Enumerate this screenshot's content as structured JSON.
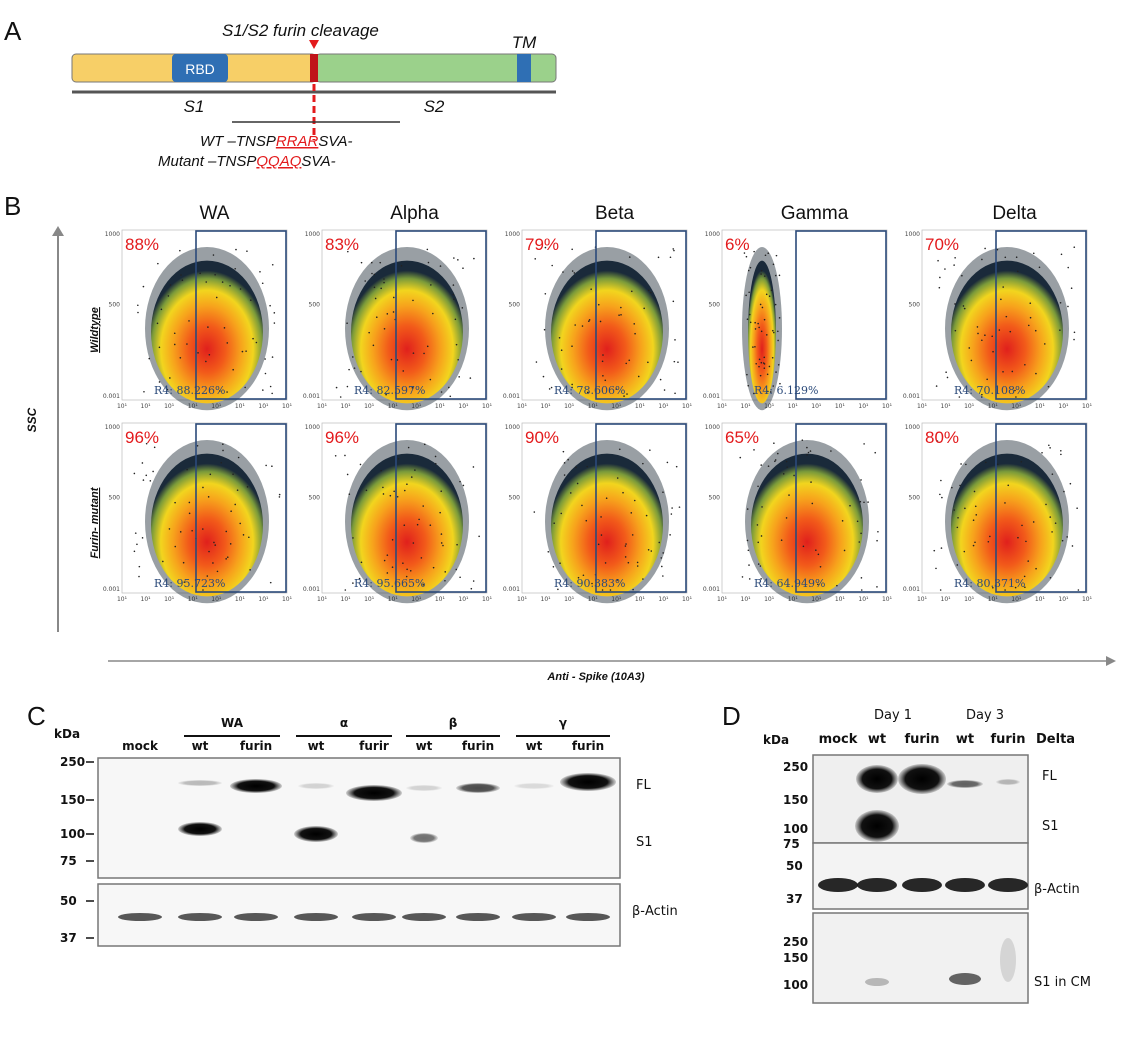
{
  "panel_a": {
    "letter": "A",
    "cleavage_label": "S1/S2 furin cleavage",
    "rbd_label": "RBD",
    "tm_label": "TM",
    "s1_label": "S1",
    "s2_label": "S2",
    "wt_prefix": "WT –TNSP",
    "wt_site": "RRAR",
    "wt_suffix": "SVA-",
    "mut_prefix": "Mutant –TNSP",
    "mut_site": "QQAQ",
    "mut_suffix": "SVA-",
    "colors": {
      "s1": "#f7cf67",
      "s2": "#9bd18b",
      "domain": "#2f6fb4",
      "site": "#e31a1c"
    }
  },
  "panel_b": {
    "letter": "B",
    "y_axis_label": "SSC",
    "x_axis_label": "Anti - Spike (10A3)",
    "row_labels": [
      "Wildtype",
      "Furin- mutant"
    ],
    "variants": [
      "WA",
      "Alpha",
      "Beta",
      "Gamma",
      "Delta"
    ],
    "x_ticks": [
      "10¹",
      "10¹",
      "10¹",
      "10¹",
      "10¹",
      "10¹",
      "10¹",
      "10¹"
    ],
    "y_ticks": [
      "1000",
      "500",
      "0.001"
    ],
    "plots": [
      [
        {
          "pct": "88%",
          "gate": "R4: 88.226%",
          "shape": "wide"
        },
        {
          "pct": "83%",
          "gate": "R4: 82.597%",
          "shape": "wide"
        },
        {
          "pct": "79%",
          "gate": "R4: 78.606%",
          "shape": "wide"
        },
        {
          "pct": "6%",
          "gate": "R4: 6.129%",
          "shape": "narrow"
        },
        {
          "pct": "70%",
          "gate": "R4: 70.108%",
          "shape": "wide"
        }
      ],
      [
        {
          "pct": "96%",
          "gate": "R4: 95.723%",
          "shape": "wide"
        },
        {
          "pct": "96%",
          "gate": "R4: 95.665%",
          "shape": "wide"
        },
        {
          "pct": "90%",
          "gate": "R4: 90.383%",
          "shape": "wide"
        },
        {
          "pct": "65%",
          "gate": "R4: 64.949%",
          "shape": "wide"
        },
        {
          "pct": "80%",
          "gate": "R4: 80.371%",
          "shape": "wide"
        }
      ]
    ]
  },
  "panel_c": {
    "letter": "C",
    "kda": "kDa",
    "groups": [
      "WA",
      "α",
      "β",
      "γ"
    ],
    "lanes": [
      "mock",
      "wt",
      "furin",
      "wt",
      "furir",
      "wt",
      "furin",
      "wt",
      "furin"
    ],
    "mw_top": [
      "250",
      "150",
      "100",
      "75"
    ],
    "mw_bottom": [
      "50",
      "37"
    ],
    "band_labels": [
      "FL",
      "S1",
      "β-Actin"
    ]
  },
  "panel_d": {
    "letter": "D",
    "kda": "kDa",
    "days": [
      "Day 1",
      "Day 3"
    ],
    "lanes": [
      "mock",
      "wt",
      "furin",
      "wt",
      "furin"
    ],
    "variant": "Delta",
    "mw_top": [
      "250",
      "150",
      "100",
      "75"
    ],
    "mw_mid": [
      "50",
      "37"
    ],
    "mw_bottom": [
      "250",
      "150",
      "100"
    ],
    "band_labels": [
      "FL",
      "S1",
      "β-Actin",
      "S1 in CM"
    ]
  }
}
